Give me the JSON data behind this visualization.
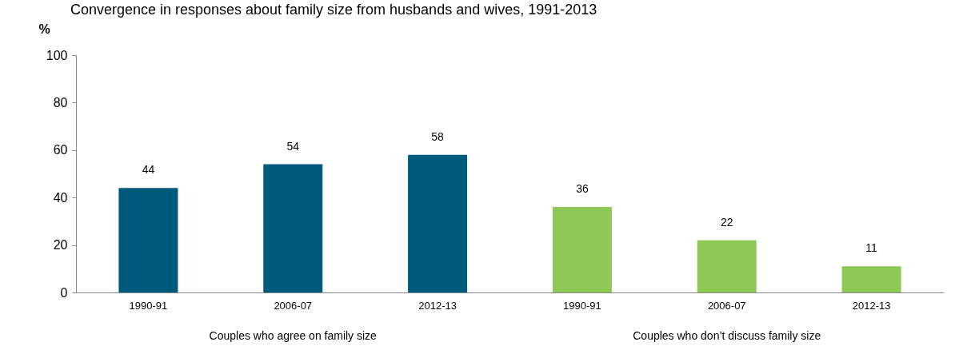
{
  "chart_data": {
    "type": "bar",
    "title": "Convergence in responses about family size from husbands and wives, 1991-2013",
    "ylabel": "%",
    "categories": [
      "1990-91",
      "2006-07",
      "2012-13",
      "1990-91",
      "2006-07",
      "2012-13"
    ],
    "values": [
      44,
      54,
      58,
      36,
      22,
      11
    ],
    "colors": [
      "#005a7c",
      "#005a7c",
      "#005a7c",
      "#8cc853",
      "#8cc853",
      "#8cc853"
    ],
    "ylim": [
      0,
      100
    ],
    "yticks": [
      0,
      20,
      40,
      60,
      80,
      100
    ],
    "grid": false,
    "data_labels": true,
    "annotations": [
      "Couples who agree on family size",
      "Couples who don’t discuss family size"
    ]
  }
}
